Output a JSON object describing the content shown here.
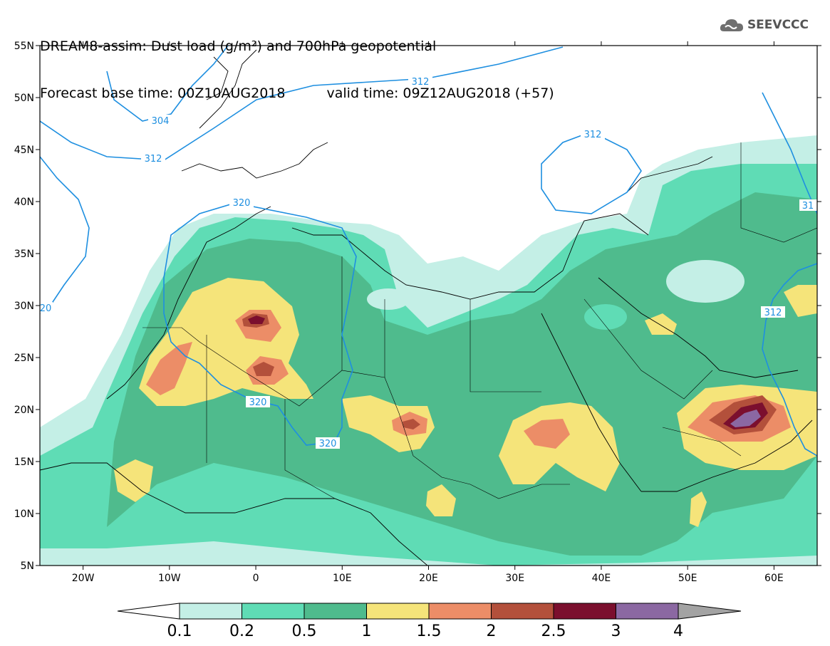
{
  "title": {
    "line1": "DREAM8-assim: Dust load (g/m²) and 700hPa geopotential",
    "base_time": "Forecast base time: 00Z10AUG2018",
    "valid_time": "valid time: 09Z12AUG2018 (+57)"
  },
  "logo": {
    "text": "SEEVCCC",
    "icon": "cloud-logo-icon"
  },
  "map": {
    "lon_range": [
      -25,
      65
    ],
    "lat_range": [
      5,
      55
    ],
    "lat_ticks": [
      "55N",
      "50N",
      "45N",
      "40N",
      "35N",
      "30N",
      "25N",
      "20N",
      "15N",
      "10N",
      "5N"
    ],
    "lon_ticks": [
      "20W",
      "10W",
      "0",
      "10E",
      "20E",
      "30E",
      "40E",
      "50E",
      "60E"
    ],
    "colors": {
      "c0_1": "#c4efe6",
      "c0_2": "#5fdcb5",
      "c0_5": "#4fbb8d",
      "c1": "#f5e47a",
      "c1_5": "#ec8d67",
      "c2": "#b3503b",
      "c2_5": "#7b0f2e",
      "c3": "#8b68a2",
      "c4": "#a3a3a3",
      "contour": "#1e8fe0",
      "coast": "#000000"
    },
    "contour_labels": [
      "304",
      "312",
      "312",
      "312",
      "320",
      "320",
      "320",
      "312",
      "20",
      "312",
      "31",
      "312"
    ]
  },
  "colorbar": {
    "labels": [
      "0.1",
      "0.2",
      "0.5",
      "1",
      "1.5",
      "2",
      "2.5",
      "3",
      "4"
    ],
    "colors": [
      "#c4efe6",
      "#5fdcb5",
      "#4fbb8d",
      "#f5e47a",
      "#ec8d67",
      "#b3503b",
      "#7b0f2e",
      "#8b68a2"
    ]
  }
}
